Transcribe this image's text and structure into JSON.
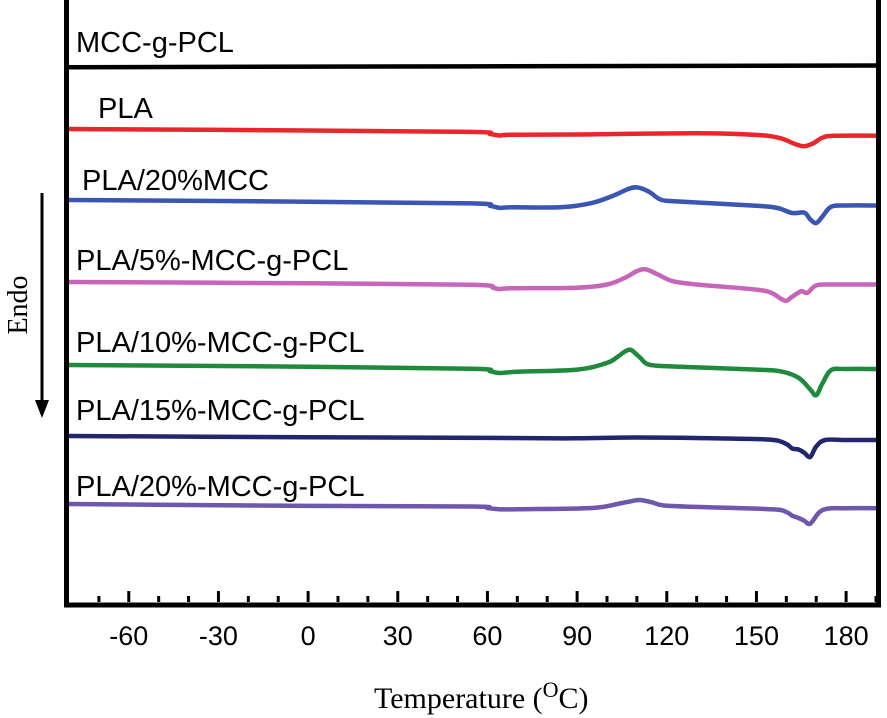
{
  "chart_data": {
    "type": "line",
    "title": "",
    "xlabel": "Temperature (",
    "xlabel_unit_sup": "O",
    "xlabel_unit_tail": "C)",
    "ylabel": "Endo",
    "ylabel_arrow": "down",
    "xlim": [
      -80,
      190
    ],
    "x_ticks": [
      -60,
      -30,
      0,
      30,
      60,
      90,
      120,
      150,
      180
    ],
    "x_tick_labels": [
      "-60",
      "-30",
      "0",
      "30",
      "60",
      "90",
      "120",
      "150",
      "180"
    ],
    "y_ticks_shown": false,
    "legend": "labels placed above each curve, left side",
    "series": [
      {
        "name": "MCC-g-PCL",
        "color": "#000000",
        "points": [
          [
            -80,
            1.0
          ],
          [
            190,
            0.6
          ]
        ]
      },
      {
        "name": "PLA",
        "color": "#e8262c",
        "points": [
          [
            -80,
            0.0
          ],
          [
            0,
            0.35
          ],
          [
            55,
            0.7
          ],
          [
            61,
            1.2
          ],
          [
            64,
            1.55
          ],
          [
            68,
            1.35
          ],
          [
            90,
            1.3
          ],
          [
            130,
            1.0
          ],
          [
            150,
            1.4
          ],
          [
            158,
            2.2
          ],
          [
            163,
            3.6
          ],
          [
            166,
            4.1
          ],
          [
            169,
            3.4
          ],
          [
            172,
            2.1
          ],
          [
            176,
            1.6
          ],
          [
            190,
            1.6
          ]
        ]
      },
      {
        "name": "PLA/20%MCC",
        "color": "#3a55b4",
        "points": [
          [
            -80,
            0.0
          ],
          [
            0,
            0.4
          ],
          [
            55,
            0.8
          ],
          [
            61,
            1.4
          ],
          [
            64,
            1.85
          ],
          [
            68,
            1.75
          ],
          [
            85,
            1.7
          ],
          [
            95,
            0.7
          ],
          [
            102,
            -1.0
          ],
          [
            107,
            -2.6
          ],
          [
            110,
            -3.0
          ],
          [
            114,
            -2.0
          ],
          [
            118,
            -0.1
          ],
          [
            124,
            0.35
          ],
          [
            150,
            1.35
          ],
          [
            157,
            1.9
          ],
          [
            162,
            3.1
          ],
          [
            166,
            3.0
          ],
          [
            168,
            4.6
          ],
          [
            170,
            5.5
          ],
          [
            172,
            4.0
          ],
          [
            175,
            1.6
          ],
          [
            180,
            1.3
          ],
          [
            190,
            1.3
          ]
        ]
      },
      {
        "name": "PLA/5%-MCC-g-PCL",
        "color": "#c766b9",
        "points": [
          [
            -80,
            0.0
          ],
          [
            0,
            0.3
          ],
          [
            55,
            0.65
          ],
          [
            62,
            1.4
          ],
          [
            64,
            1.7
          ],
          [
            68,
            1.5
          ],
          [
            90,
            1.35
          ],
          [
            100,
            0.6
          ],
          [
            106,
            -1.0
          ],
          [
            110,
            -2.6
          ],
          [
            113,
            -3.0
          ],
          [
            117,
            -1.8
          ],
          [
            122,
            -0.2
          ],
          [
            130,
            0.6
          ],
          [
            150,
            1.8
          ],
          [
            155,
            2.6
          ],
          [
            158,
            3.9
          ],
          [
            160,
            4.5
          ],
          [
            162,
            3.5
          ],
          [
            165,
            2.2
          ],
          [
            167,
            2.6
          ],
          [
            170,
            0.8
          ],
          [
            175,
            0.6
          ],
          [
            190,
            0.6
          ]
        ]
      },
      {
        "name": "PLA/10%-MCC-g-PCL",
        "color": "#1f8a3c",
        "points": [
          [
            -80,
            0.0
          ],
          [
            0,
            0.4
          ],
          [
            55,
            0.9
          ],
          [
            61,
            1.5
          ],
          [
            64,
            1.9
          ],
          [
            70,
            1.6
          ],
          [
            90,
            1.1
          ],
          [
            100,
            -0.5
          ],
          [
            104,
            -2.2
          ],
          [
            106,
            -3.2
          ],
          [
            108,
            -3.6
          ],
          [
            111,
            -1.8
          ],
          [
            114,
            -0.1
          ],
          [
            122,
            0.35
          ],
          [
            150,
            1.1
          ],
          [
            158,
            1.5
          ],
          [
            164,
            3.0
          ],
          [
            168,
            5.8
          ],
          [
            170,
            7.2
          ],
          [
            172,
            4.5
          ],
          [
            175,
            1.2
          ],
          [
            180,
            0.95
          ],
          [
            190,
            0.95
          ]
        ]
      },
      {
        "name": "PLA/15%-MCC-g-PCL",
        "color": "#22266e",
        "points": [
          [
            -80,
            0.0
          ],
          [
            0,
            0.3
          ],
          [
            60,
            0.45
          ],
          [
            90,
            0.55
          ],
          [
            110,
            0.35
          ],
          [
            140,
            0.6
          ],
          [
            155,
            0.9
          ],
          [
            160,
            1.9
          ],
          [
            162,
            3.0
          ],
          [
            164,
            3.2
          ],
          [
            166,
            4.0
          ],
          [
            168,
            5.0
          ],
          [
            170,
            2.5
          ],
          [
            173,
            0.95
          ],
          [
            180,
            0.95
          ],
          [
            190,
            0.95
          ]
        ]
      },
      {
        "name": "PLA/20%-MCC-g-PCL",
        "color": "#6f57ad",
        "points": [
          [
            -80,
            0.0
          ],
          [
            0,
            0.45
          ],
          [
            55,
            0.6
          ],
          [
            60,
            0.95
          ],
          [
            64,
            1.25
          ],
          [
            70,
            1.25
          ],
          [
            95,
            0.95
          ],
          [
            104,
            -0.1
          ],
          [
            108,
            -0.65
          ],
          [
            111,
            -0.95
          ],
          [
            115,
            -0.4
          ],
          [
            119,
            0.35
          ],
          [
            130,
            0.7
          ],
          [
            155,
            1.25
          ],
          [
            160,
            1.9
          ],
          [
            162,
            2.8
          ],
          [
            164,
            3.3
          ],
          [
            166,
            4.0
          ],
          [
            168,
            4.7
          ],
          [
            171,
            2.0
          ],
          [
            174,
            1.1
          ],
          [
            180,
            1.0
          ],
          [
            190,
            1.0
          ]
        ]
      }
    ]
  }
}
